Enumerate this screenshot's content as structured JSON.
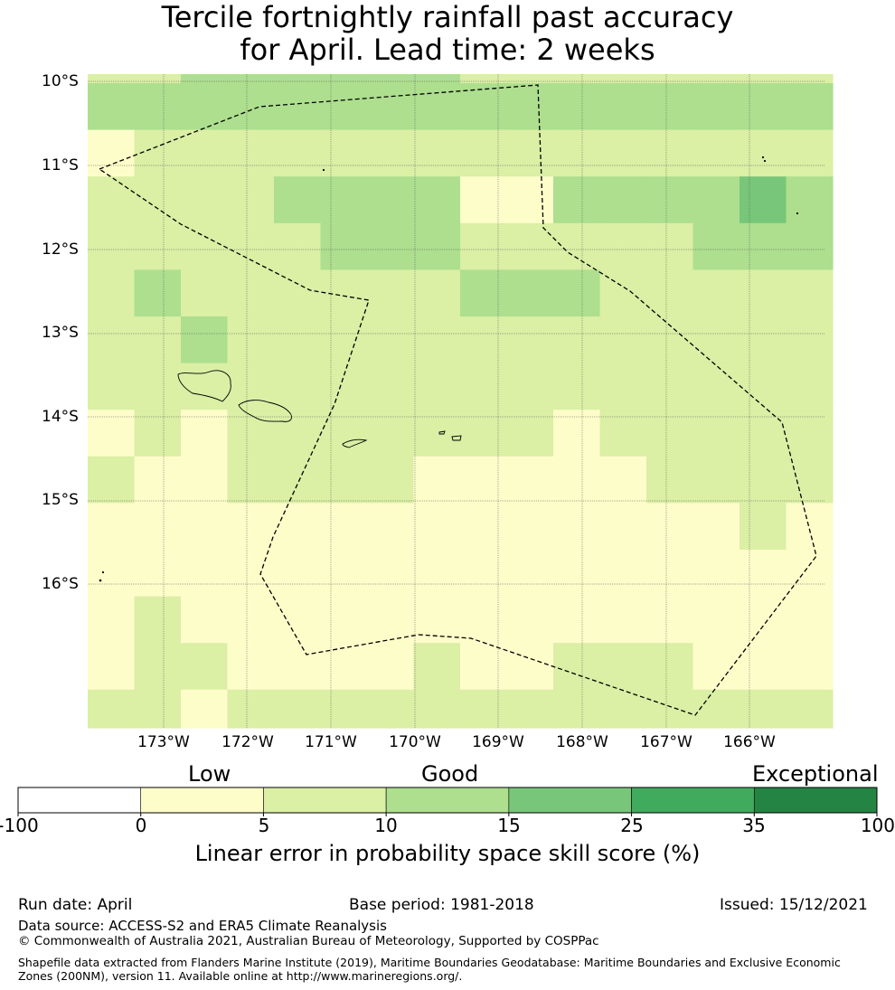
{
  "title": {
    "line1": "Tercile fortnightly rainfall past accuracy",
    "line2": "for April. Lead time: 2 weeks"
  },
  "map": {
    "lat_labels": [
      "10°S",
      "11°S",
      "12°S",
      "13°S",
      "14°S",
      "15°S",
      "16°S"
    ],
    "lon_labels": [
      "173°W",
      "172°W",
      "171°W",
      "170°W",
      "169°W",
      "168°W",
      "167°W",
      "166°W"
    ],
    "category_colors": [
      "#ffffff",
      "#fdfdca",
      "#dbefa5",
      "#addf8e",
      "#78c679",
      "#41ab5d",
      "#238443"
    ],
    "grid": [
      [
        2,
        2,
        3,
        3,
        3,
        3,
        3,
        3,
        2,
        2,
        2,
        2,
        2,
        2,
        2,
        2
      ],
      [
        3,
        3,
        3,
        3,
        3,
        3,
        3,
        3,
        3,
        3,
        3,
        3,
        3,
        3,
        3,
        3
      ],
      [
        1,
        2,
        2,
        2,
        2,
        2,
        2,
        2,
        2,
        2,
        2,
        2,
        2,
        2,
        2,
        2
      ],
      [
        2,
        2,
        2,
        2,
        3,
        3,
        3,
        3,
        1,
        1,
        3,
        3,
        3,
        3,
        4,
        3
      ],
      [
        2,
        2,
        2,
        2,
        2,
        3,
        3,
        3,
        2,
        2,
        2,
        2,
        2,
        3,
        3,
        3
      ],
      [
        2,
        3,
        2,
        2,
        2,
        2,
        2,
        2,
        3,
        3,
        3,
        2,
        2,
        2,
        2,
        2
      ],
      [
        2,
        2,
        3,
        2,
        2,
        2,
        2,
        2,
        2,
        2,
        2,
        2,
        2,
        2,
        2,
        2
      ],
      [
        2,
        2,
        2,
        2,
        2,
        2,
        2,
        2,
        2,
        2,
        2,
        2,
        2,
        2,
        2,
        2
      ],
      [
        1,
        2,
        1,
        2,
        2,
        2,
        2,
        2,
        2,
        2,
        1,
        2,
        2,
        2,
        2,
        2
      ],
      [
        2,
        1,
        1,
        2,
        2,
        2,
        2,
        1,
        1,
        1,
        1,
        1,
        2,
        2,
        2,
        2
      ],
      [
        1,
        1,
        1,
        1,
        1,
        1,
        1,
        1,
        1,
        1,
        1,
        1,
        1,
        1,
        2,
        1
      ],
      [
        1,
        1,
        1,
        1,
        1,
        1,
        1,
        1,
        1,
        1,
        1,
        1,
        1,
        1,
        1,
        1
      ],
      [
        1,
        2,
        1,
        1,
        1,
        1,
        1,
        1,
        1,
        1,
        1,
        1,
        1,
        1,
        1,
        1
      ],
      [
        1,
        2,
        2,
        1,
        1,
        1,
        1,
        2,
        1,
        1,
        2,
        2,
        2,
        1,
        1,
        1
      ],
      [
        2,
        2,
        1,
        2,
        2,
        2,
        2,
        2,
        2,
        2,
        2,
        2,
        2,
        2,
        2,
        2
      ]
    ]
  },
  "colorbar": {
    "words": [
      "Low",
      "Good",
      "Exceptional"
    ],
    "ticks": [
      "-100",
      "0",
      "5",
      "10",
      "15",
      "25",
      "35",
      "100"
    ],
    "colors": [
      "#ffffff",
      "#fdfdca",
      "#dbefa5",
      "#addf8e",
      "#78c679",
      "#41ab5d",
      "#238443"
    ],
    "axis_label": "Linear error in probability space skill score (%)"
  },
  "footer": {
    "run_date": "Run date: April",
    "base_period": "Base period: 1981-2018",
    "issued": "Issued: 15/12/2021",
    "data_source": "Data source: ACCESS-S2 and ERA5 Climate Reanalysis",
    "copyright": "© Commonwealth of Australia 2021, Australian Bureau of Meteorology, Supported by COSPPac",
    "shapefile": "Shapefile data extracted from Flanders Marine Institute (2019), Maritime Boundaries Geodatabase: Maritime Boundaries and Exclusive Economic Zones (200NM), version 11. Available online at http://www.marineregions.org/."
  }
}
